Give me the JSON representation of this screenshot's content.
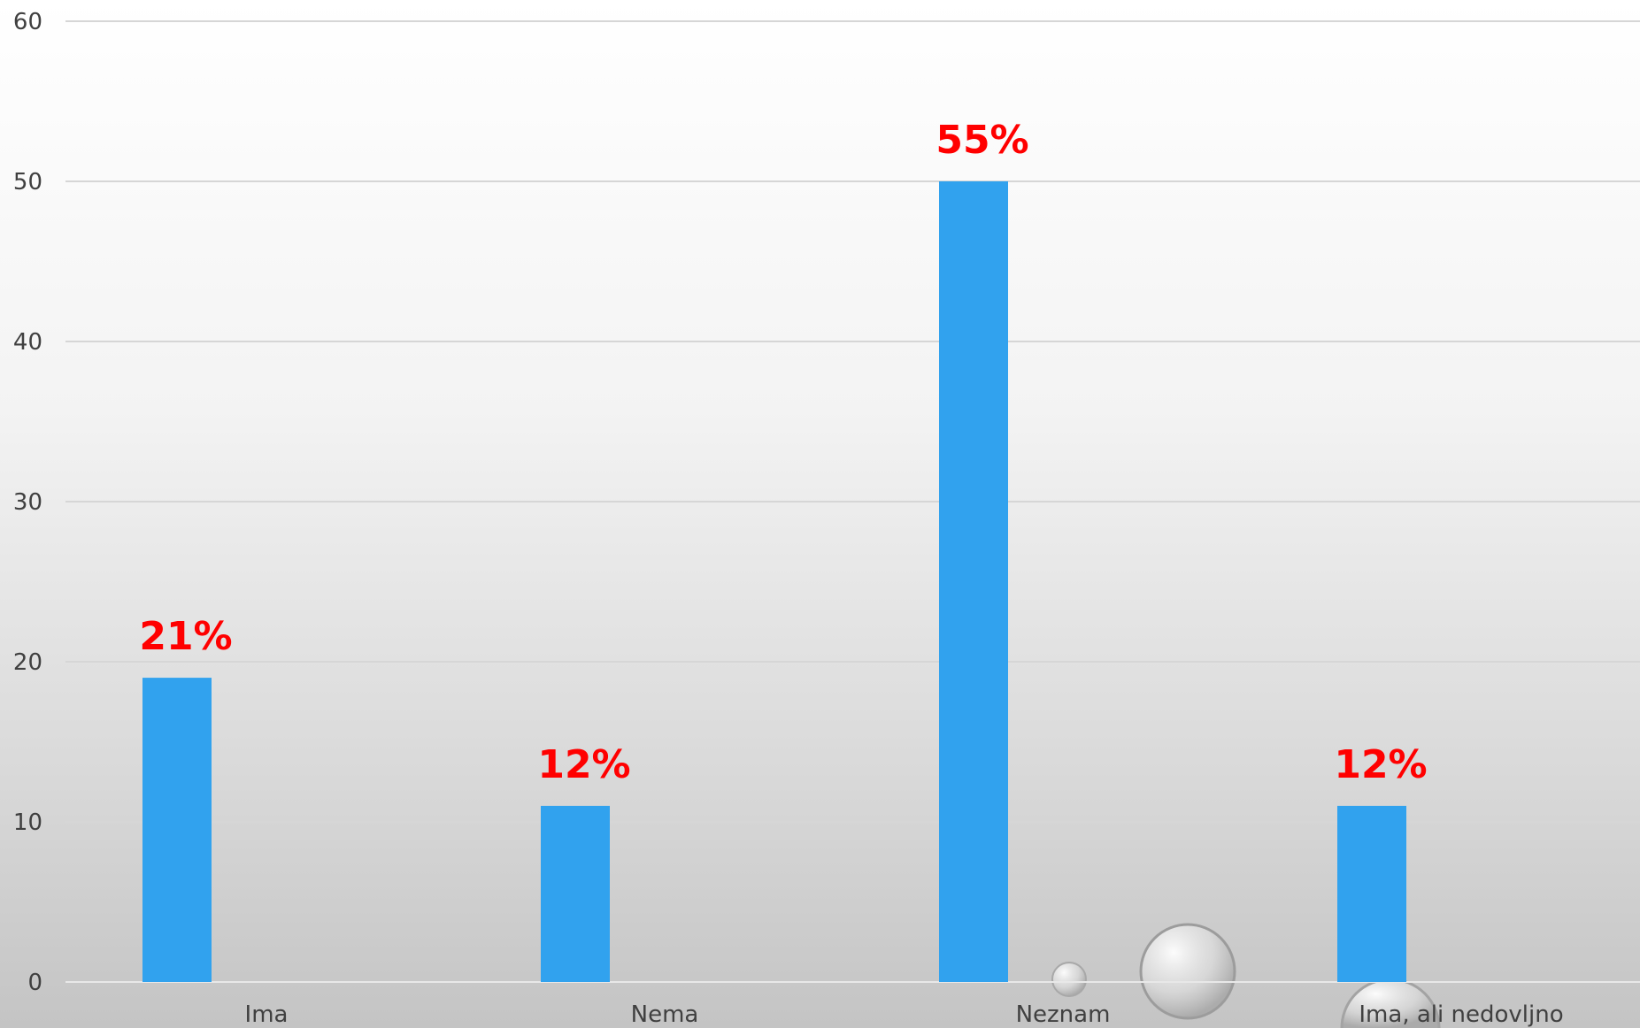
{
  "colors": {
    "bar": "#31A2EE",
    "data_label": "#FF0000"
  },
  "chart_data": {
    "type": "bar",
    "categories": [
      "Ima",
      "Nema",
      "Neznam",
      "Ima, ali nedovljno"
    ],
    "values": [
      19,
      11,
      50,
      11
    ],
    "data_labels": [
      "21%",
      "12%",
      "55%",
      "12%"
    ],
    "yticks": [
      "0",
      "10",
      "20",
      "30",
      "40",
      "50",
      "60"
    ],
    "ylim": [
      0,
      60
    ],
    "grid": true,
    "legend": "none"
  }
}
